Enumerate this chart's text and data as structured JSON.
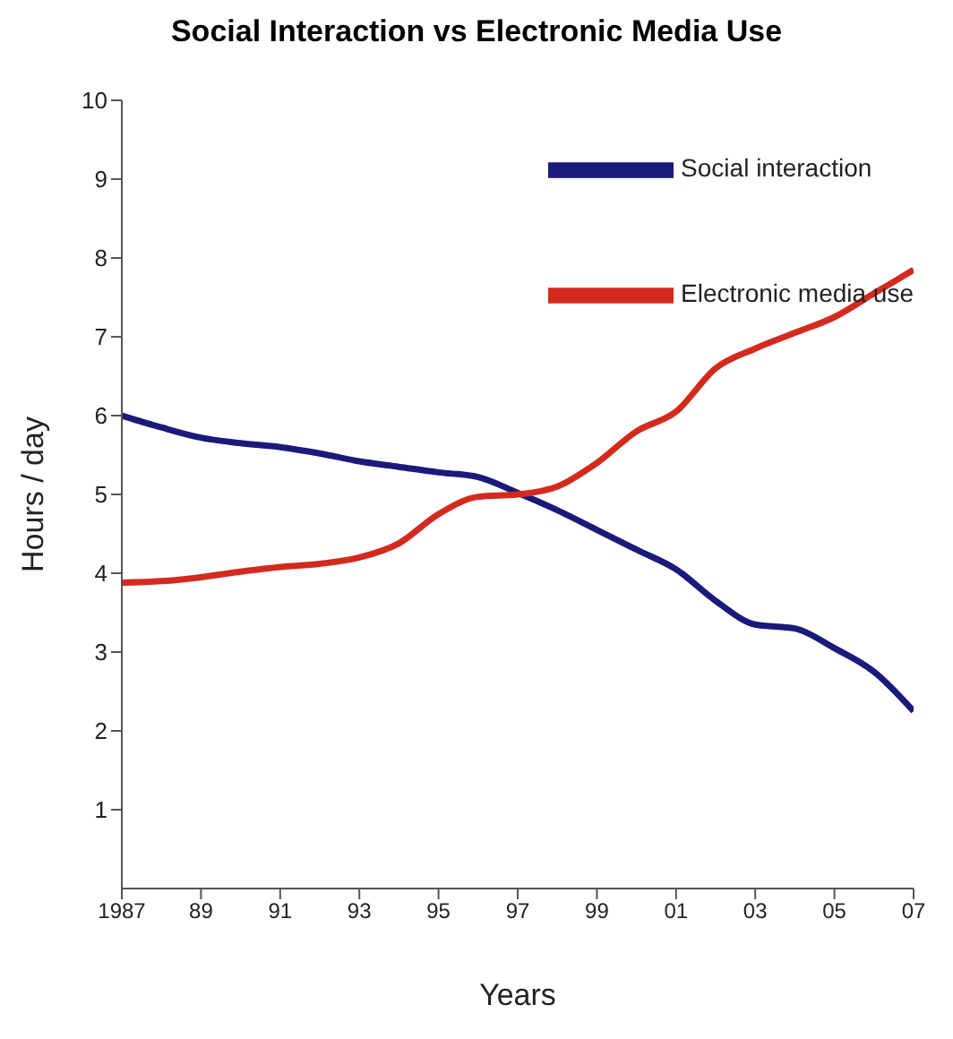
{
  "chart_data": {
    "type": "line",
    "title": "Social Interaction vs Electronic Media Use",
    "xlabel": "Years",
    "ylabel": "Hours / day",
    "x": [
      1987,
      1988,
      1989,
      1990,
      1991,
      1992,
      1993,
      1994,
      1995,
      1996,
      1997,
      1998,
      1999,
      2000,
      2001,
      2002,
      2003,
      2004,
      2005,
      2006,
      2007
    ],
    "series": [
      {
        "name": "Social interaction",
        "color": "#1a1a7a",
        "values": [
          6.0,
          5.85,
          5.72,
          5.65,
          5.6,
          5.52,
          5.42,
          5.35,
          5.28,
          5.22,
          5.02,
          4.8,
          4.55,
          4.3,
          4.05,
          3.65,
          3.35,
          3.3,
          3.05,
          2.75,
          2.25
        ]
      },
      {
        "name": "Electronic media use",
        "color": "#d42a1e",
        "values": [
          3.88,
          3.9,
          3.95,
          4.02,
          4.08,
          4.12,
          4.2,
          4.38,
          4.75,
          4.97,
          5.0,
          5.1,
          5.4,
          5.8,
          6.05,
          6.6,
          6.85,
          7.05,
          7.25,
          7.55,
          7.85
        ]
      }
    ],
    "xlim": [
      1987,
      2007
    ],
    "xticks": [
      {
        "value": 1987,
        "label": "1987"
      },
      {
        "value": 1989,
        "label": "89"
      },
      {
        "value": 1991,
        "label": "91"
      },
      {
        "value": 1993,
        "label": "93"
      },
      {
        "value": 1995,
        "label": "95"
      },
      {
        "value": 1997,
        "label": "97"
      },
      {
        "value": 1999,
        "label": "99"
      },
      {
        "value": 2001,
        "label": "01"
      },
      {
        "value": 2003,
        "label": "03"
      },
      {
        "value": 2005,
        "label": "05"
      },
      {
        "value": 2007,
        "label": "07"
      }
    ],
    "ylim": [
      0,
      10
    ],
    "yticks": [
      1,
      2,
      3,
      4,
      5,
      6,
      7,
      8,
      9,
      10
    ],
    "grid": false,
    "legend": "top right",
    "marker": "none",
    "line_style": "solid"
  }
}
